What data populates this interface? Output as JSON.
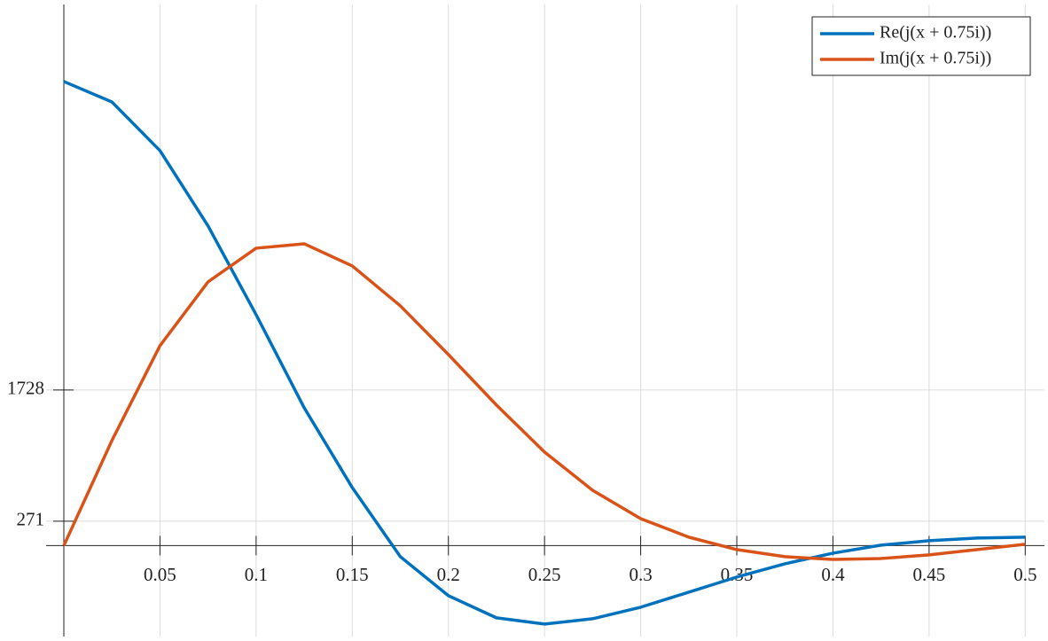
{
  "chart_data": {
    "type": "line",
    "x": [
      0,
      0.025,
      0.05,
      0.075,
      0.1,
      0.125,
      0.15,
      0.175,
      0.2,
      0.225,
      0.25,
      0.275,
      0.3,
      0.325,
      0.35,
      0.375,
      0.4,
      0.425,
      0.45,
      0.475,
      0.5
    ],
    "series": [
      {
        "name": "Re(j(x + 0.75i))",
        "color": "#0072bd",
        "values": [
          5154,
          4927,
          4386,
          3550,
          2565,
          1531,
          645,
          -123,
          -556,
          -802,
          -871,
          -812,
          -684,
          -517,
          -349,
          -202,
          -84,
          5,
          54,
          84,
          94
        ]
      },
      {
        "name": "Im(j(x + 0.75i))",
        "color": "#d95319",
        "values": [
          0,
          1167,
          2220,
          2929,
          3303,
          3352,
          3106,
          2663,
          2122,
          1561,
          1039,
          615,
          300,
          94,
          -44,
          -123,
          -153,
          -143,
          -103,
          -44,
          15
        ]
      }
    ],
    "xlim": [
      0,
      0.51
    ],
    "ylim": [
      -1010,
      6010
    ],
    "xticks": [
      0.05,
      0.1,
      0.15,
      0.2,
      0.25,
      0.3,
      0.35,
      0.4,
      0.45,
      0.5
    ],
    "yticks": [
      271,
      1728
    ],
    "grid": true,
    "legend": "upper right"
  }
}
